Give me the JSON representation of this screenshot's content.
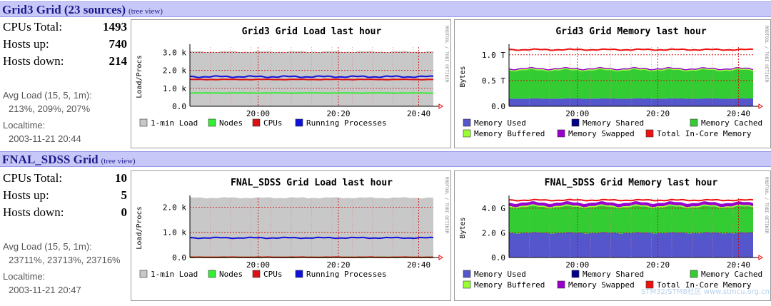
{
  "grids": [
    {
      "name": "Grid3 Grid (23 sources)",
      "tree_view": "(tree view)",
      "cpus_label": "CPUs Total:",
      "cpus": "1493",
      "hosts_up_label": "Hosts up:",
      "hosts_up": "740",
      "hosts_down_label": "Hosts down:",
      "hosts_down": "214",
      "avg_load_label": "Avg Load (15, 5, 1m):",
      "avg_load": "213%, 209%, 207%",
      "localtime_label": "Localtime:",
      "localtime": "2003-11-21 20:44",
      "load_chart": {
        "title": "Grid3 Grid Load last hour",
        "ylabel": "Load/Procs",
        "yticks": [
          "0.0",
          "1.0 k",
          "2.0 k",
          "3.0 k"
        ],
        "ymax": 3300,
        "xticks": [
          "20:00",
          "20:20",
          "20:40"
        ],
        "legend": [
          "1-min Load",
          "Nodes",
          "CPUs",
          "Running Processes"
        ],
        "series": {
          "load": 3050,
          "nodes": 740,
          "cpus": 1493,
          "procs": 1650
        }
      },
      "mem_chart": {
        "title": "Grid3 Grid Memory last hour",
        "ylabel": "Bytes",
        "yticks": [
          "0.0",
          "0.5 T",
          "1.0 T"
        ],
        "ymax": 1.15,
        "xticks": [
          "20:00",
          "20:20",
          "20:40"
        ],
        "legend": [
          "Memory Used",
          "Memory Shared",
          "Memory Cached",
          "Memory Buffered",
          "Memory Swapped",
          "Total In-Core Memory"
        ],
        "series": {
          "used": 0.15,
          "cached": 0.55,
          "buffered": 0.02,
          "swapped": 0.02,
          "total": 1.1
        }
      }
    },
    {
      "name": "FNAL_SDSS Grid",
      "tree_view": "(tree view)",
      "cpus_label": "CPUs Total:",
      "cpus": "10",
      "hosts_up_label": "Hosts up:",
      "hosts_up": "5",
      "hosts_down_label": "Hosts down:",
      "hosts_down": "0",
      "avg_load_label": "Avg Load (15, 5, 1m):",
      "avg_load": "23711%, 23713%, 23716%",
      "localtime_label": "Localtime:",
      "localtime": "2003-11-21 20:47",
      "load_chart": {
        "title": "FNAL_SDSS Grid Load last hour",
        "ylabel": "Load/Procs",
        "yticks": [
          "0.0",
          "1.0 k",
          "2.0 k"
        ],
        "ymax": 2350,
        "xticks": [
          "20:00",
          "20:20",
          "20:40"
        ],
        "legend": [
          "1-min Load",
          "Nodes",
          "CPUs",
          "Running Processes"
        ],
        "series": {
          "load": 2370,
          "nodes": 5,
          "cpus": 10,
          "procs": 780
        }
      },
      "mem_chart": {
        "title": "FNAL_SDSS Grid Memory last hour",
        "ylabel": "Bytes",
        "yticks": [
          "0.0",
          "2.0 G",
          "4.0 G"
        ],
        "ymax": 4.8,
        "xticks": [
          "20:00",
          "20:20",
          "20:40"
        ],
        "legend": [
          "Memory Used",
          "Memory Shared",
          "Memory Cached",
          "Memory Buffered",
          "Memory Swapped",
          "Total In-Core Memory"
        ],
        "series": {
          "used": 2.0,
          "cached": 2.1,
          "buffered": 0.1,
          "swapped": 0.25,
          "total": 4.65
        }
      }
    }
  ],
  "rrdtool_credit": "RRDTOOL / TOBI OETIKER",
  "watermark": "STM32/STM8社区 www.stmcu.org.cn",
  "colors": {
    "load": "#c8c8c8",
    "nodes": "#33ee33",
    "cpus": "#dd1111",
    "procs": "#1111dd",
    "used": "#5555cc",
    "shared": "#000088",
    "cached": "#33cc33",
    "buffered": "#99ff33",
    "swapped": "#9900cc",
    "total": "#ee1111"
  }
}
